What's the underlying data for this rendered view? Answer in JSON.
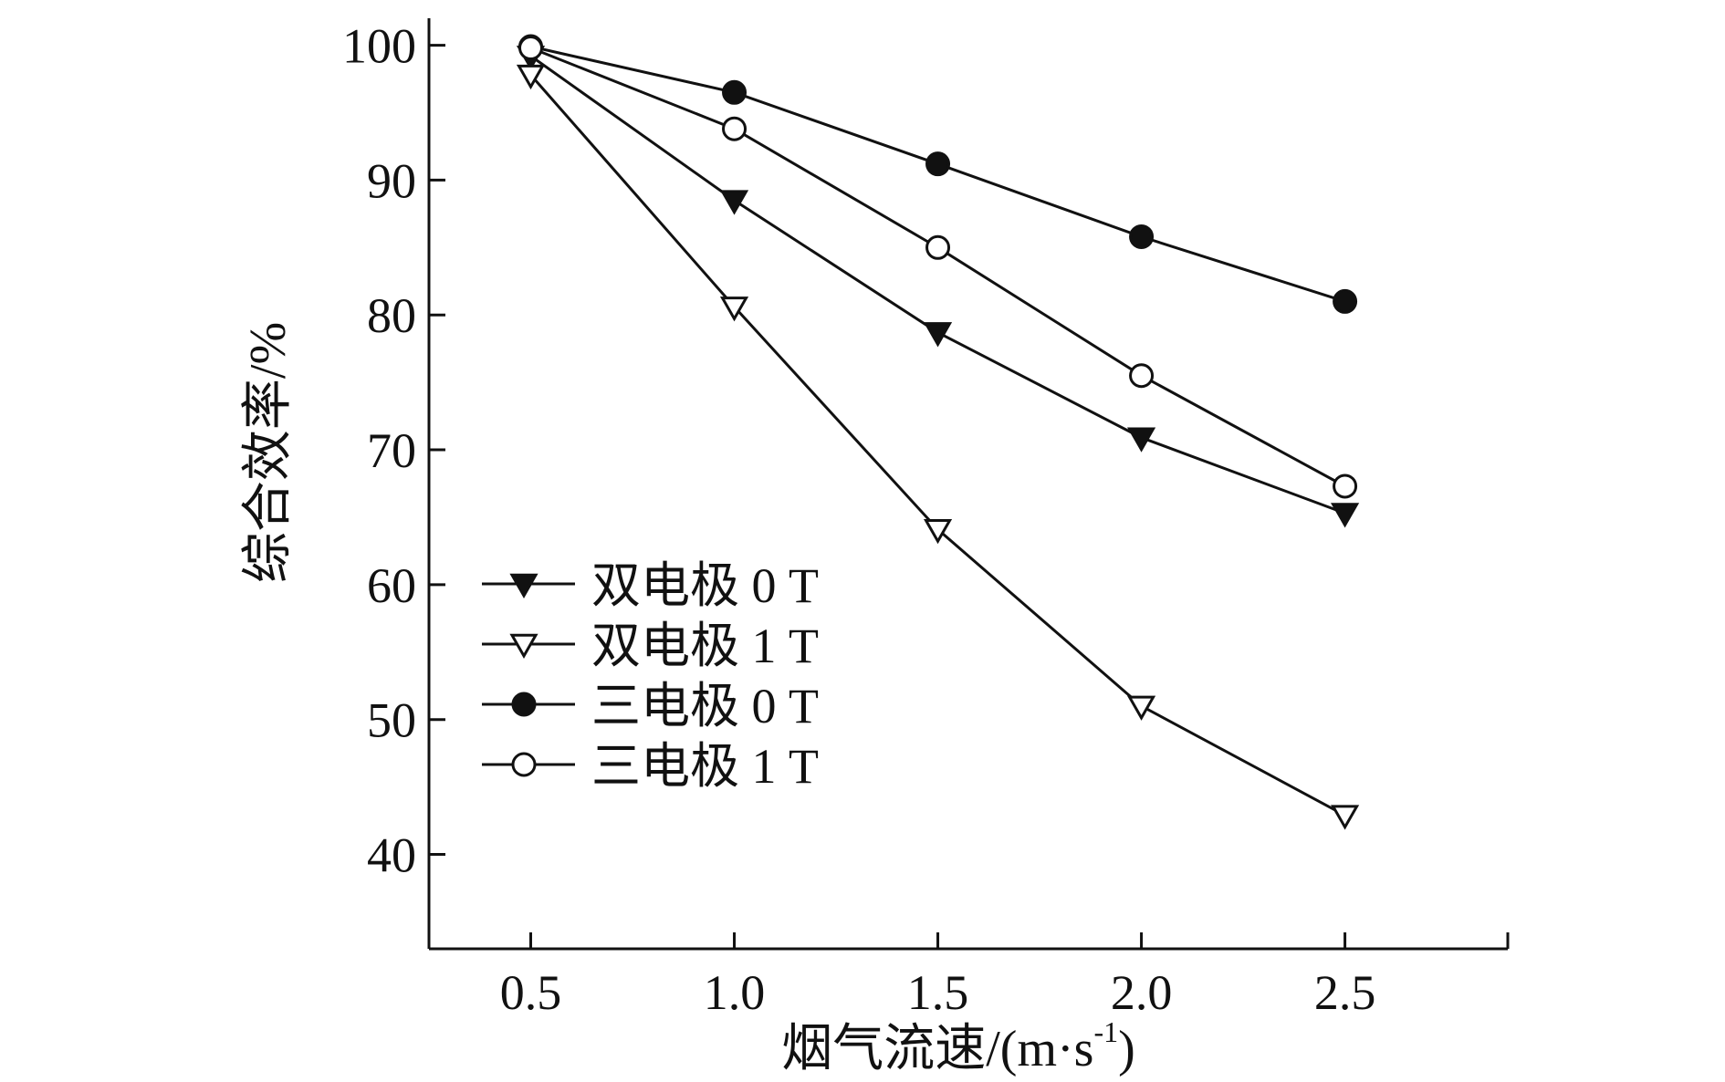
{
  "chart_data": {
    "type": "line",
    "title": "",
    "xlabel": "烟气流速/(m·s",
    "xlabel_sup": "-1",
    "xlabel_suffix": ")",
    "ylabel": "综合效率/%",
    "xlim": [
      0.25,
      2.9
    ],
    "ylim": [
      33,
      102
    ],
    "x_ticks": [
      0.5,
      1.0,
      1.5,
      2.0,
      2.5
    ],
    "x_tick_labels": [
      "0.5",
      "1.0",
      "1.5",
      "2.0",
      "2.5"
    ],
    "y_ticks": [
      40,
      50,
      60,
      70,
      80,
      90,
      100
    ],
    "y_tick_labels": [
      "40",
      "50",
      "60",
      "70",
      "80",
      "90",
      "100"
    ],
    "grid": false,
    "legend_position": "lower-left",
    "x": [
      0.5,
      1.0,
      1.5,
      2.0,
      2.5
    ],
    "series": [
      {
        "name": "双电极 0 T",
        "marker": "triangle-down-filled",
        "values": [
          99.2,
          88.5,
          78.7,
          70.9,
          65.3
        ]
      },
      {
        "name": "双电极 1 T",
        "marker": "triangle-down-open",
        "values": [
          97.8,
          80.6,
          64.1,
          51.0,
          42.9
        ]
      },
      {
        "name": "三电极 0 T",
        "marker": "circle-filled",
        "values": [
          99.9,
          96.5,
          91.2,
          85.8,
          81.0
        ]
      },
      {
        "name": "三电极 1 T",
        "marker": "circle-open",
        "values": [
          99.8,
          93.8,
          85.0,
          75.5,
          67.3
        ]
      }
    ]
  }
}
